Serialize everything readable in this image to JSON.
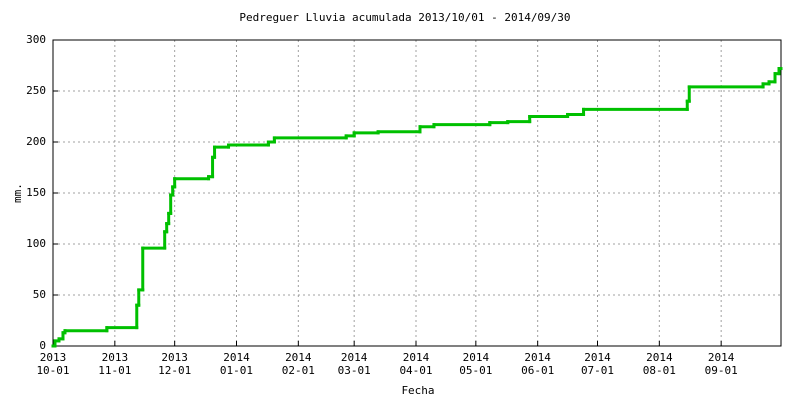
{
  "chart_data": {
    "type": "step",
    "title": "Pedreguer Lluvia acumulada 2013/10/01 - 2014/09/30",
    "x_label": "Fecha",
    "y_label": "mm.",
    "xlim": [
      "2013-10-01",
      "2014-10-01"
    ],
    "xticks": [
      {
        "value": "2013-10-01",
        "label": [
          "2013",
          "10-01"
        ]
      },
      {
        "value": "2013-11-01",
        "label": [
          "2013",
          "11-01"
        ]
      },
      {
        "value": "2013-12-01",
        "label": [
          "2013",
          "12-01"
        ]
      },
      {
        "value": "2014-01-01",
        "label": [
          "2014",
          "01-01"
        ]
      },
      {
        "value": "2014-02-01",
        "label": [
          "2014",
          "02-01"
        ]
      },
      {
        "value": "2014-03-01",
        "label": [
          "2014",
          "03-01"
        ]
      },
      {
        "value": "2014-04-01",
        "label": [
          "2014",
          "04-01"
        ]
      },
      {
        "value": "2014-05-01",
        "label": [
          "2014",
          "05-01"
        ]
      },
      {
        "value": "2014-06-01",
        "label": [
          "2014",
          "06-01"
        ]
      },
      {
        "value": "2014-07-01",
        "label": [
          "2014",
          "07-01"
        ]
      },
      {
        "value": "2014-08-01",
        "label": [
          "2014",
          "08-01"
        ]
      },
      {
        "value": "2014-09-01",
        "label": [
          "2014",
          "09-01"
        ]
      }
    ],
    "ylim": [
      0,
      300
    ],
    "yticks": [
      0,
      50,
      100,
      150,
      200,
      250,
      300
    ],
    "grid": true,
    "x": [
      "2013-10-01",
      "2013-10-02",
      "2013-10-04",
      "2013-10-06",
      "2013-10-07",
      "2013-10-28",
      "2013-11-12",
      "2013-11-13",
      "2013-11-15",
      "2013-11-26",
      "2013-11-27",
      "2013-11-28",
      "2013-11-29",
      "2013-11-30",
      "2013-12-01",
      "2013-12-18",
      "2013-12-20",
      "2013-12-21",
      "2013-12-28",
      "2014-01-17",
      "2014-01-20",
      "2014-02-25",
      "2014-03-01",
      "2014-03-13",
      "2014-04-03",
      "2014-04-10",
      "2014-05-08",
      "2014-05-17",
      "2014-05-28",
      "2014-06-16",
      "2014-06-24",
      "2014-08-15",
      "2014-08-16",
      "2014-09-22",
      "2014-09-25",
      "2014-09-28",
      "2014-09-30"
    ],
    "series": [
      {
        "color": "#00c000",
        "values": [
          0,
          5,
          7,
          13,
          15,
          18,
          40,
          55,
          96,
          112,
          120,
          130,
          148,
          156,
          164,
          166,
          185,
          195,
          197,
          200,
          204,
          206,
          209,
          210,
          215,
          217,
          219,
          220,
          225,
          227,
          232,
          240,
          254,
          257,
          259,
          267,
          272
        ]
      }
    ]
  }
}
